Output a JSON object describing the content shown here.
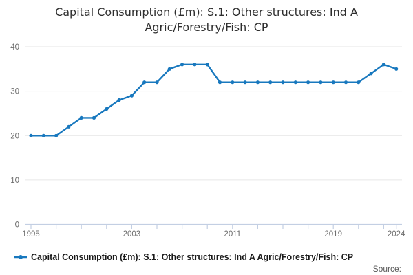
{
  "title": {
    "lines": [
      "Capital Consumption (£m): S.1: Other structures: Ind A",
      "Agric/Forestry/Fish: CP"
    ]
  },
  "legend": {
    "label": "Capital Consumption (£m): S.1: Other structures: Ind A Agric/Forestry/Fish: CP"
  },
  "source_label": "Source:",
  "colors": {
    "line": "#1878be",
    "grid": "#e6e6e6",
    "axis": "#c3cfe3",
    "tick_label": "#6e6e6e",
    "title_text": "#2e2e2e",
    "legend_text": "#1a1a1a",
    "source_text": "#595959"
  },
  "chart_data": {
    "type": "line",
    "title": "Capital Consumption (£m): S.1: Other structures: Ind A Agric/Forestry/Fish: CP",
    "xlabel": "",
    "ylabel": "",
    "x": [
      1995,
      1996,
      1997,
      1998,
      1999,
      2000,
      2001,
      2002,
      2003,
      2004,
      2005,
      2006,
      2007,
      2008,
      2009,
      2010,
      2011,
      2012,
      2013,
      2014,
      2015,
      2016,
      2017,
      2018,
      2019,
      2020,
      2021,
      2022,
      2023,
      2024
    ],
    "series": [
      {
        "name": "Capital Consumption (£m): S.1: Other structures: Ind A Agric/Forestry/Fish: CP",
        "color": "#1878be",
        "values": [
          20,
          20,
          20,
          22,
          24,
          24,
          26,
          28,
          29,
          32,
          32,
          35,
          36,
          36,
          36,
          32,
          32,
          32,
          32,
          32,
          32,
          32,
          32,
          32,
          32,
          32,
          32,
          34,
          36,
          35
        ]
      }
    ],
    "ylim": [
      0,
      40
    ],
    "yticks": [
      0,
      10,
      20,
      30,
      40
    ],
    "xticks_labeled": [
      1995,
      2003,
      2011,
      2019,
      2024
    ],
    "xtick_minor_interval": 2,
    "grid": "horizontal",
    "markers": true,
    "legend_position": "bottom"
  }
}
